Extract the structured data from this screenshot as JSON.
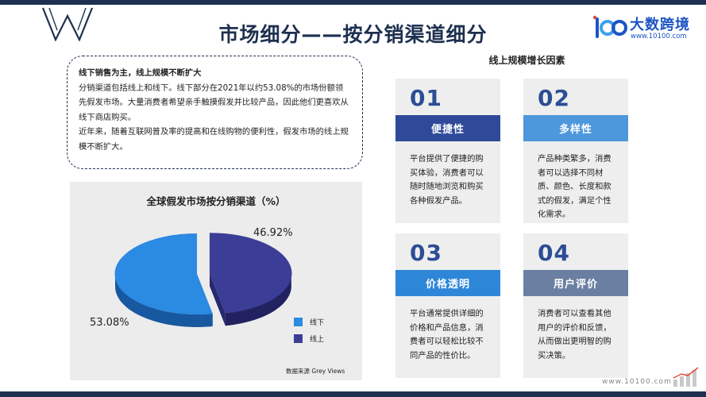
{
  "title": "市场细分——按分销渠道细分",
  "brand": {
    "name": "大数跨境",
    "url": "www.10100.com"
  },
  "summary": {
    "heading": "线下销售为主，线上规模不断扩大",
    "paragraph1": "分销渠道包括线上和线下。线下部分在2021年以约53.08%的市场份额领先假发市场。大量消费者希望亲手触摸假发并比较产品，因此他们更喜欢从线下商店购买。",
    "paragraph2": "近年来，随着互联网普及率的提高和在线购物的便利性，假发市场的线上规模不断扩大。"
  },
  "chart": {
    "source": "数据来源 Grey Views"
  },
  "chart_data": {
    "type": "pie",
    "title": "全球假发市场按分销渠道（%）",
    "categories": [
      "线下",
      "线上"
    ],
    "values": [
      53.08,
      46.92
    ],
    "data_labels": [
      "53.08%",
      "46.92%"
    ],
    "colors": [
      "#2b8ae2",
      "#3c3d96"
    ],
    "style": "3d-exploded",
    "legend_position": "right"
  },
  "factors": {
    "title": "线上规模增长因素",
    "items": [
      {
        "num": "01",
        "heading": "便捷性",
        "text": "平台提供了便捷的购买体验，消费者可以随时随地浏览和购买各种假发产品。",
        "color": "#2e4a99"
      },
      {
        "num": "02",
        "heading": "多样性",
        "text": "产品种类繁多，消费者可以选择不同材质、颜色、长度和款式的假发，满足个性化需求。",
        "color": "#4d97dc"
      },
      {
        "num": "03",
        "heading": "价格透明",
        "text": "平台通常提供详细的价格和产品信息，消费者可以轻松比较不同产品的性价比。",
        "color": "#2e86d8"
      },
      {
        "num": "04",
        "heading": "用户评价",
        "text": "消费者可以查看其他用户的评价和反馈，从而做出更明智的购买决策。",
        "color": "#6b7fa2"
      }
    ]
  },
  "watermark": "www.10100.com"
}
